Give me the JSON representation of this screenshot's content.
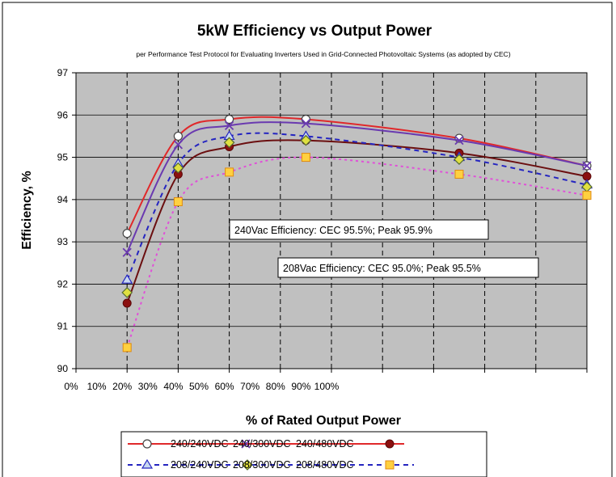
{
  "chart_data": {
    "type": "line",
    "title": "5kW Efficiency vs Output Power",
    "subtitle": "per Performance Test Protocol for Evaluating Inverters Used in Grid-Connected Photovoltaic Systems (as adopted by CEC)",
    "xlabel": "% of Rated Output Power",
    "ylabel": "Efficiency, %",
    "ylim": [
      90,
      97
    ],
    "yticks": [
      "90",
      "91",
      "92",
      "93",
      "94",
      "95",
      "96",
      "97"
    ],
    "xtick_labels": [
      "0%",
      "10%",
      "20%",
      "30%",
      "40%",
      "50%",
      "60%",
      "70%",
      "80%",
      "90%",
      "100%"
    ],
    "x": [
      0.2,
      0.4,
      0.6,
      0.9,
      1.5,
      2.0
    ],
    "grid": true,
    "series": [
      {
        "name": "240/240VDC",
        "color": "#e0282a",
        "line": "solid",
        "marker": "circle-open",
        "values": [
          93.2,
          95.5,
          95.9,
          95.9,
          95.45,
          94.8
        ]
      },
      {
        "name": "240/300VDC",
        "color": "#6a3ab0",
        "line": "solid",
        "marker": "x",
        "values": [
          92.75,
          95.3,
          95.75,
          95.8,
          95.4,
          94.8
        ]
      },
      {
        "name": "240/480VDC",
        "color": "#6b0f10",
        "line": "solid",
        "marker": "circle-filled",
        "values": [
          91.55,
          94.6,
          95.25,
          95.4,
          95.1,
          94.55
        ]
      },
      {
        "name": "208/240VDC",
        "color": "#2525c0",
        "line": "dashed",
        "marker": "triangle",
        "values": [
          92.1,
          94.85,
          95.5,
          95.5,
          95.0,
          94.35
        ]
      },
      {
        "name": "208/300VDC",
        "color": "#6b0f10",
        "line": "none",
        "marker": "diamond",
        "values": [
          91.8,
          94.75,
          95.35,
          95.4,
          94.95,
          94.3
        ]
      },
      {
        "name": "208/480VDC",
        "color": "#e050d8",
        "line": "dotted",
        "marker": "square",
        "values": [
          90.5,
          93.95,
          94.65,
          95.0,
          94.6,
          94.1
        ]
      }
    ],
    "annotations": [
      "240Vac Efficiency: CEC 95.5%; Peak 95.9%",
      "208Vac Efficiency: CEC 95.0%; Peak 95.5%"
    ],
    "legend_rows": [
      [
        "240/240VDC",
        "240/300VDC",
        "240/480VDC"
      ],
      [
        "208/240VDC",
        "208/300VDC",
        "208/480VDC"
      ]
    ]
  }
}
